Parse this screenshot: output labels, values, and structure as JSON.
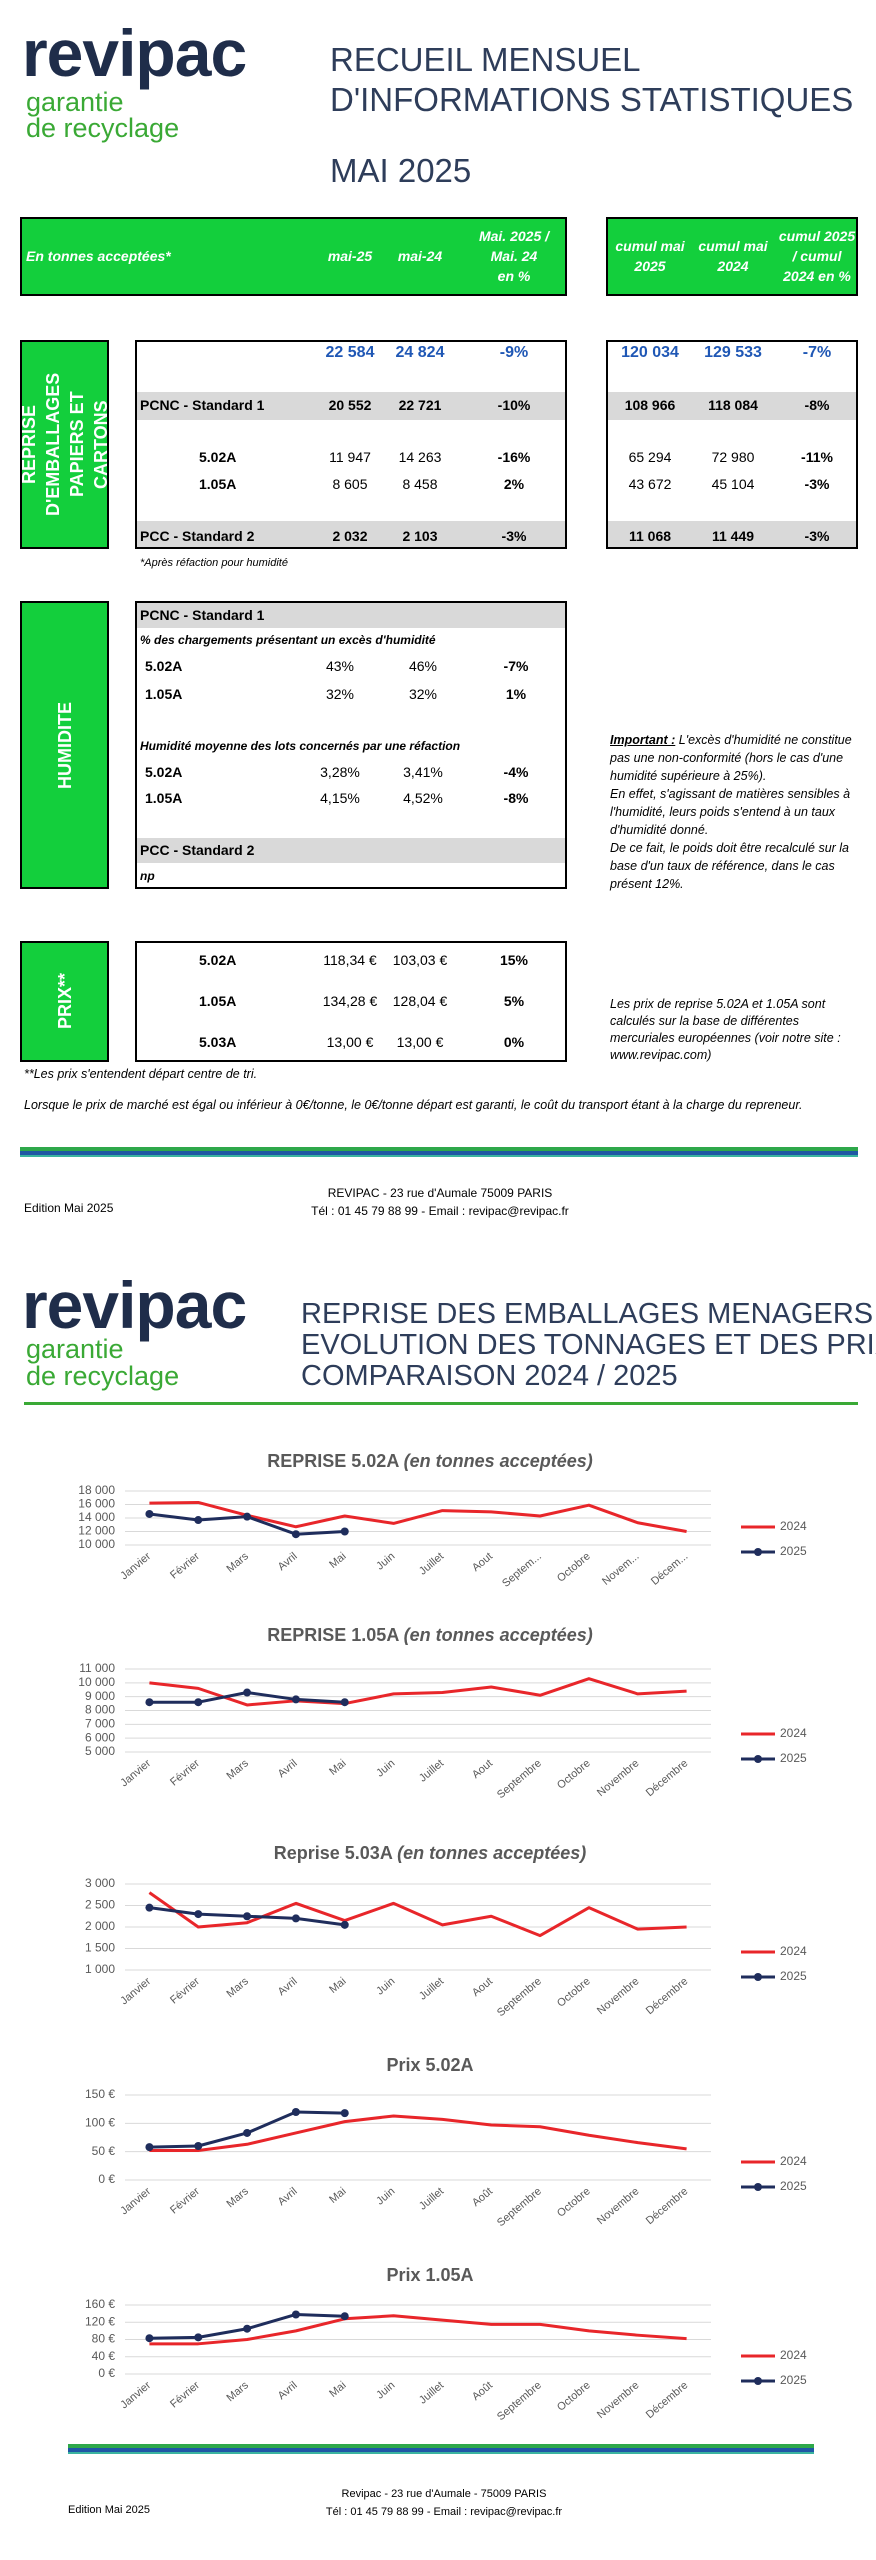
{
  "page1": {
    "logo": {
      "brand": "revipac",
      "tagline": [
        "garantie",
        "de recyclage"
      ]
    },
    "title": [
      "RECUEIL MENSUEL",
      "D'INFORMATIONS STATISTIQUES"
    ],
    "month": "MAI 2025",
    "header": {
      "label": "En tonnes acceptées*",
      "cols": [
        [
          "mai-25"
        ],
        [
          "mai-24"
        ],
        [
          "Mai. 2025 /",
          "Mai. 24",
          "en %"
        ]
      ],
      "cum_cols": [
        [
          "cumul mai",
          "2025"
        ],
        [
          "cumul mai",
          "2024"
        ],
        [
          "cumul 2025",
          "/ cumul",
          "2024 en %"
        ]
      ]
    },
    "reprise": {
      "label": "REPRISE D'EMBALLAGES PAPIERS ET CARTONS",
      "rows": [
        {
          "cells": [
            "22 584",
            "24 824",
            "-9%"
          ],
          "cum": [
            "120 034",
            "129 533",
            "-7%"
          ]
        },
        {
          "label": "PCNC - Standard 1",
          "cells": [
            "20 552",
            "22 721",
            "-10%"
          ],
          "cum": [
            "108 966",
            "118 084",
            "-8%"
          ]
        },
        {
          "label": "5.02A",
          "cells": [
            "11 947",
            "14 263",
            "-16%"
          ],
          "cum": [
            "65 294",
            "72 980",
            "-11%"
          ]
        },
        {
          "label": "1.05A",
          "cells": [
            "8 605",
            "8 458",
            "2%"
          ],
          "cum": [
            "43 672",
            "45 104",
            "-3%"
          ]
        },
        {
          "label": "PCC - Standard 2",
          "cells": [
            "2 032",
            "2 103",
            "-3%"
          ],
          "cum": [
            "11 068",
            "11 449",
            "-3%"
          ]
        }
      ],
      "note": "*Après réfaction pour humidité"
    },
    "humidite": {
      "label": "HUMIDITE",
      "rows": [
        {
          "label": "PCNC - Standard 1"
        },
        {
          "label": "% des chargements présentant un excès d'humidité"
        },
        {
          "label": "5.02A",
          "cells": [
            "43%",
            "46%",
            "-7%"
          ]
        },
        {
          "label": "1.05A",
          "cells": [
            "32%",
            "32%",
            "1%"
          ]
        },
        {
          "label": "Humidité moyenne des lots concernés par une réfaction"
        },
        {
          "label": "5.02A",
          "cells": [
            "3,28%",
            "3,41%",
            "-4%"
          ]
        },
        {
          "label": "1.05A",
          "cells": [
            "4,15%",
            "4,52%",
            "-8%"
          ]
        },
        {
          "label": "PCC - Standard 2"
        },
        {
          "label": "np"
        }
      ],
      "note": {
        "lead": "Important :",
        "paragraphs": [
          "L'excès d'humidité ne constitue pas une non-conformité (hors le cas d'une humidité supérieure à 25%).",
          "En effet, s'agissant de matières sensibles à l'humidité, leurs poids s'entend à un taux d'humidité donné.",
          "De ce fait, le poids doit être recalculé sur la base d'un taux de référence, dans le cas présent 12%."
        ]
      }
    },
    "prix": {
      "label": "PRIX**",
      "rows": [
        {
          "label": "5.02A",
          "cells": [
            "118,34 €",
            "103,03 €",
            "15%"
          ]
        },
        {
          "label": "1.05A",
          "cells": [
            "134,28 €",
            "128,04 €",
            "5%"
          ]
        },
        {
          "label": "5.03A",
          "cells": [
            "13,00 €",
            "13,00 €",
            "0%"
          ]
        }
      ],
      "note": "Les prix de reprise 5.02A et 1.05A sont calculés sur la base de différentes mercuriales européennes (voir notre site : www.revipac.com)"
    },
    "footnotes": [
      "**Les prix s'entendent départ centre de tri.",
      "Lorsque le prix de marché est égal ou inférieur à 0€/tonne, le 0€/tonne départ est garanti, le coût du transport étant  à la charge du repreneur."
    ],
    "footer": {
      "edition": "Edition Mai 2025",
      "address": "REVIPAC - 23 rue d'Aumale 75009 PARIS",
      "contact": "Tél : 01 45 79 88 99 - Email : revipac@revipac.fr"
    }
  },
  "page2": {
    "logo": {
      "brand": "revipac",
      "tagline": [
        "garantie",
        "de recyclage"
      ]
    },
    "title": [
      "REPRISE DES EMBALLAGES MENAGERS",
      "EVOLUTION DES TONNAGES ET DES PRIX",
      "COMPARAISON 2024 / 2025"
    ],
    "footer": {
      "edition": "Edition Mai 2025",
      "address": "Revipac - 23 rue d'Aumale - 75009 PARIS",
      "contact": "Tél : 01 45 79 88 99 - Email : revipac@revipac.fr"
    }
  },
  "chart_data": [
    {
      "type": "line",
      "title": "REPRISE 5.02A",
      "title_note": "(en tonnes acceptées)",
      "legend": "right",
      "grid": true,
      "categories": [
        "Janvier",
        "Février",
        "Mars",
        "Avril",
        "Mai",
        "Juin",
        "Juillet",
        "Aout",
        "Septem...",
        "Octobre",
        "Novem...",
        "Décem..."
      ],
      "ylim": [
        10000,
        18000
      ],
      "yticks": [
        {
          "value": 10000,
          "label": "10 000"
        },
        {
          "value": 12000,
          "label": "12 000"
        },
        {
          "value": 14000,
          "label": "14 000"
        },
        {
          "value": 16000,
          "label": "16 000"
        },
        {
          "value": 18000,
          "label": "18 000"
        }
      ],
      "series": [
        {
          "name": "2024",
          "color": "#e8262a",
          "values": [
            16200,
            16300,
            14400,
            12700,
            14300,
            13200,
            15100,
            14900,
            14300,
            15900,
            13300,
            12000
          ]
        },
        {
          "name": "2025",
          "color": "#1f2d5c",
          "marker": "circle",
          "values": [
            14600,
            13700,
            14200,
            11600,
            12000,
            null,
            null,
            null,
            null,
            null,
            null,
            null
          ]
        }
      ]
    },
    {
      "type": "line",
      "title": "REPRISE 1.05A",
      "title_note": "(en tonnes acceptées)",
      "legend": "right",
      "grid": true,
      "categories": [
        "Janvier",
        "Février",
        "Mars",
        "Avril",
        "Mai",
        "Juin",
        "Juillet",
        "Aout",
        "Septembre",
        "Octobre",
        "Novembre",
        "Décembre"
      ],
      "ylim": [
        5000,
        11000
      ],
      "yticks": [
        {
          "value": 5000,
          "label": "5 000"
        },
        {
          "value": 6000,
          "label": "6 000"
        },
        {
          "value": 7000,
          "label": "7 000"
        },
        {
          "value": 8000,
          "label": "8 000"
        },
        {
          "value": 9000,
          "label": "9 000"
        },
        {
          "value": 10000,
          "label": "10 000"
        },
        {
          "value": 11000,
          "label": "11 000"
        }
      ],
      "series": [
        {
          "name": "2024",
          "color": "#e8262a",
          "values": [
            10000,
            9600,
            8400,
            8700,
            8500,
            9200,
            9300,
            9700,
            9100,
            10300,
            9200,
            9400
          ]
        },
        {
          "name": "2025",
          "color": "#1f2d5c",
          "marker": "circle",
          "values": [
            8600,
            8600,
            9300,
            8800,
            8600,
            null,
            null,
            null,
            null,
            null,
            null,
            null
          ]
        }
      ]
    },
    {
      "type": "line",
      "title": "Reprise 5.03A",
      "title_note": "(en tonnes acceptées)",
      "legend": "right",
      "grid": true,
      "categories": [
        "Janvier",
        "Février",
        "Mars",
        "Avril",
        "Mai",
        "Juin",
        "Juillet",
        "Aout",
        "Septembre",
        "Octobre",
        "Novembre",
        "Décembre"
      ],
      "ylim": [
        1000,
        3000
      ],
      "yticks": [
        {
          "value": 1000,
          "label": "1 000"
        },
        {
          "value": 1500,
          "label": "1 500"
        },
        {
          "value": 2000,
          "label": "2 000"
        },
        {
          "value": 2500,
          "label": "2 500"
        },
        {
          "value": 3000,
          "label": "3 000"
        }
      ],
      "series": [
        {
          "name": "2024",
          "color": "#e8262a",
          "values": [
            2800,
            2000,
            2100,
            2550,
            2150,
            2550,
            2050,
            2250,
            1800,
            2450,
            1950,
            2000
          ]
        },
        {
          "name": "2025",
          "color": "#1f2d5c",
          "marker": "circle",
          "values": [
            2450,
            2300,
            2250,
            2200,
            2050,
            null,
            null,
            null,
            null,
            null,
            null,
            null
          ]
        }
      ]
    },
    {
      "type": "line",
      "title": "Prix 5.02A",
      "legend": "right",
      "grid": true,
      "categories": [
        "Janvier",
        "Février",
        "Mars",
        "Avril",
        "Mai",
        "Juin",
        "Juillet",
        "Août",
        "Septembre",
        "Octobre",
        "Novembre",
        "Décembre"
      ],
      "ylim": [
        0,
        150
      ],
      "yticks": [
        {
          "value": 0,
          "label": "0 €"
        },
        {
          "value": 50,
          "label": "50 €"
        },
        {
          "value": 100,
          "label": "100 €"
        },
        {
          "value": 150,
          "label": "150 €"
        }
      ],
      "series": [
        {
          "name": "2024",
          "color": "#e8262a",
          "values": [
            52,
            52,
            63,
            83,
            103,
            113,
            107,
            97,
            94,
            79,
            66,
            55
          ]
        },
        {
          "name": "2025",
          "color": "#1f2d5c",
          "marker": "circle",
          "values": [
            58,
            60,
            83,
            120,
            118,
            null,
            null,
            null,
            null,
            null,
            null,
            null
          ]
        }
      ]
    },
    {
      "type": "line",
      "title": "Prix 1.05A",
      "legend": "right",
      "grid": true,
      "categories": [
        "Janvier",
        "Février",
        "Mars",
        "Avril",
        "Mai",
        "Juin",
        "Juillet",
        "Août",
        "Septembre",
        "Octobre",
        "Novembre",
        "Décembre"
      ],
      "ylim": [
        0,
        160
      ],
      "yticks": [
        {
          "value": 0,
          "label": "0 €"
        },
        {
          "value": 40,
          "label": "40 €"
        },
        {
          "value": 80,
          "label": "80 €"
        },
        {
          "value": 120,
          "label": "120 €"
        },
        {
          "value": 160,
          "label": "160 €"
        }
      ],
      "series": [
        {
          "name": "2024",
          "color": "#e8262a",
          "values": [
            70,
            70,
            80,
            100,
            128,
            135,
            125,
            115,
            115,
            100,
            90,
            82
          ]
        },
        {
          "name": "2025",
          "color": "#1f2d5c",
          "marker": "circle",
          "values": [
            83,
            85,
            105,
            138,
            134,
            null,
            null,
            null,
            null,
            null,
            null,
            null
          ]
        }
      ]
    }
  ]
}
